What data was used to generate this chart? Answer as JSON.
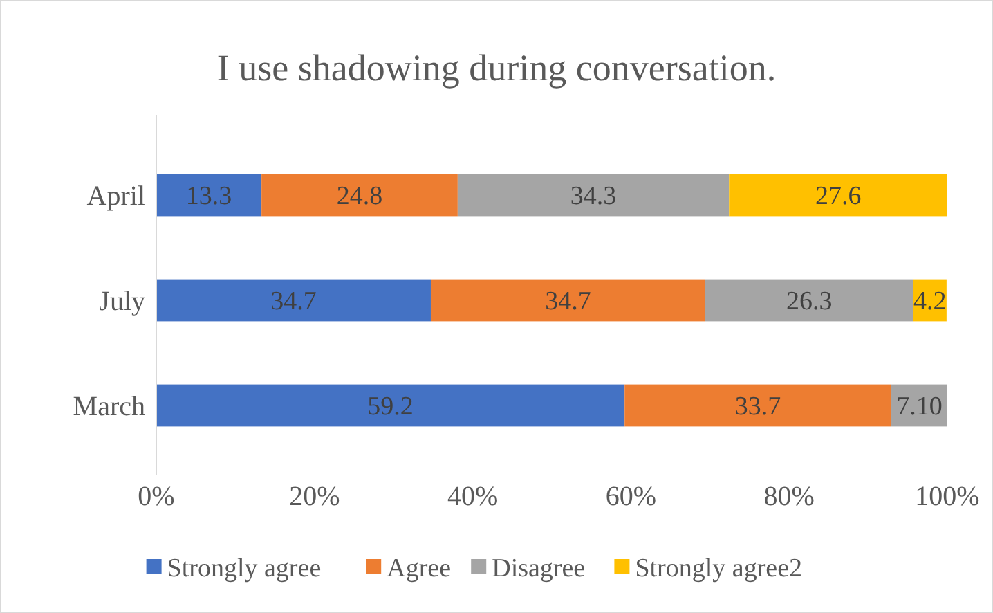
{
  "chart_data": {
    "type": "bar",
    "orientation": "horizontal",
    "stacked": true,
    "title": "I use shadowing during conversation.",
    "categories": [
      "April",
      "July",
      "March"
    ],
    "series": [
      {
        "name": "Strongly agree",
        "color": "#4472c4",
        "values": [
          13.3,
          34.7,
          59.2
        ]
      },
      {
        "name": "Agree",
        "color": "#ed7d31",
        "values": [
          24.8,
          34.7,
          33.7
        ]
      },
      {
        "name": "Disagree",
        "color": "#a5a5a5",
        "values": [
          34.3,
          26.3,
          7.1
        ],
        "value_labels": [
          "34.3",
          "26.3",
          "7.10"
        ]
      },
      {
        "name": "Strongly agree2",
        "color": "#ffc000",
        "values": [
          27.6,
          4.2,
          null
        ]
      }
    ],
    "xlim": [
      0,
      100
    ],
    "xticks": [
      {
        "value": 0,
        "label": "0%"
      },
      {
        "value": 20,
        "label": "20%"
      },
      {
        "value": 40,
        "label": "40%"
      },
      {
        "value": 60,
        "label": "60%"
      },
      {
        "value": 80,
        "label": "80%"
      },
      {
        "value": 100,
        "label": "100%"
      }
    ],
    "data_labels": true,
    "legend": "bottom",
    "grid": false
  }
}
